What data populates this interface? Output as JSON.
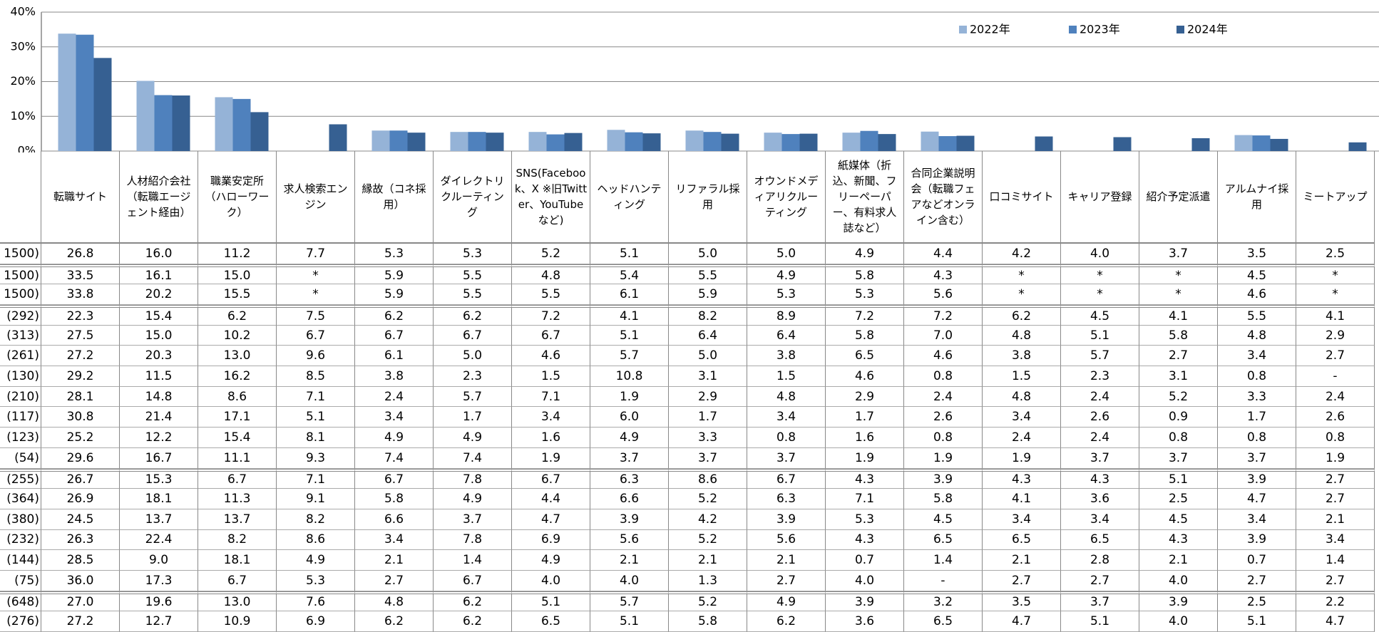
{
  "chart_data": {
    "type": "bar",
    "categories": [
      "転職サイト",
      "人材紹介会社（転職エージェント経由）",
      "職業安定所（ハローワーク）",
      "求人検索エンジン",
      "縁故（コネ採用）",
      "ダイレクトリクルーティング",
      "SNS(Facebook、X ※旧Twitter、YouTubeなど)",
      "ヘッドハンティング",
      "リファラル採用",
      "オウンドメディアリクルーティング",
      "紙媒体（折込、新聞、フリーペーパー、有料求人誌など）",
      "合同企業説明会（転職フェアなどオンライン含む）",
      "口コミサイト",
      "キャリア登録",
      "紹介予定派遣",
      "アルムナイ採用",
      "ミートアップ"
    ],
    "series": [
      {
        "name": "2022年",
        "color": "#95b3d7",
        "values": [
          33.8,
          20.2,
          15.5,
          null,
          5.9,
          5.5,
          5.5,
          6.1,
          5.9,
          5.3,
          5.3,
          5.6,
          null,
          null,
          null,
          4.6,
          null
        ]
      },
      {
        "name": "2023年",
        "color": "#4f81bd",
        "values": [
          33.5,
          16.1,
          15,
          null,
          5.9,
          5.5,
          4.8,
          5.4,
          5.5,
          4.9,
          5.8,
          4.3,
          null,
          null,
          null,
          4.5,
          null
        ]
      },
      {
        "name": "2024年",
        "color": "#366092",
        "values": [
          26.8,
          16,
          11.2,
          7.7,
          5.3,
          5.3,
          5.2,
          5.1,
          5,
          5,
          4.9,
          4.4,
          4.2,
          4,
          3.7,
          3.5,
          2.5
        ]
      }
    ],
    "ylim": [
      0,
      40
    ],
    "yticks": [
      {
        "value": 0,
        "label": "0%"
      },
      {
        "value": 10,
        "label": "10%"
      },
      {
        "value": 20,
        "label": "20%"
      },
      {
        "value": 30,
        "label": "30%"
      },
      {
        "value": 40,
        "label": "40%"
      }
    ],
    "grid": true,
    "legend": "top-right"
  },
  "table": {
    "rows": [
      {
        "label": "1500)",
        "cells": [
          "26.8",
          "16.0",
          "11.2",
          "7.7",
          "5.3",
          "5.3",
          "5.2",
          "5.1",
          "5.0",
          "5.0",
          "4.9",
          "4.4",
          "4.2",
          "4.0",
          "3.7",
          "3.5",
          "2.5"
        ]
      },
      {
        "label": "1500)",
        "cells": [
          "33.5",
          "16.1",
          "15.0",
          "*",
          "5.9",
          "5.5",
          "4.8",
          "5.4",
          "5.5",
          "4.9",
          "5.8",
          "4.3",
          "*",
          "*",
          "*",
          "4.5",
          "*"
        ]
      },
      {
        "label": "1500)",
        "cells": [
          "33.8",
          "20.2",
          "15.5",
          "*",
          "5.9",
          "5.5",
          "5.5",
          "6.1",
          "5.9",
          "5.3",
          "5.3",
          "5.6",
          "*",
          "*",
          "*",
          "4.6",
          "*"
        ]
      },
      {
        "label": "(292)",
        "cells": [
          "22.3",
          "15.4",
          "6.2",
          "7.5",
          "6.2",
          "6.2",
          "7.2",
          "4.1",
          "8.2",
          "8.9",
          "7.2",
          "7.2",
          "6.2",
          "4.5",
          "4.1",
          "5.5",
          "4.1"
        ]
      },
      {
        "label": "(313)",
        "cells": [
          "27.5",
          "15.0",
          "10.2",
          "6.7",
          "6.7",
          "6.7",
          "6.7",
          "5.1",
          "6.4",
          "6.4",
          "5.8",
          "7.0",
          "4.8",
          "5.1",
          "5.8",
          "4.8",
          "2.9"
        ]
      },
      {
        "label": "(261)",
        "cells": [
          "27.2",
          "20.3",
          "13.0",
          "9.6",
          "6.1",
          "5.0",
          "4.6",
          "5.7",
          "5.0",
          "3.8",
          "6.5",
          "4.6",
          "3.8",
          "5.7",
          "2.7",
          "3.4",
          "2.7"
        ]
      },
      {
        "label": "(130)",
        "cells": [
          "29.2",
          "11.5",
          "16.2",
          "8.5",
          "3.8",
          "2.3",
          "1.5",
          "10.8",
          "3.1",
          "1.5",
          "4.6",
          "0.8",
          "1.5",
          "2.3",
          "3.1",
          "0.8",
          "-"
        ]
      },
      {
        "label": "(210)",
        "cells": [
          "28.1",
          "14.8",
          "8.6",
          "7.1",
          "2.4",
          "5.7",
          "7.1",
          "1.9",
          "2.9",
          "4.8",
          "2.9",
          "2.4",
          "4.8",
          "2.4",
          "5.2",
          "3.3",
          "2.4"
        ]
      },
      {
        "label": "(117)",
        "cells": [
          "30.8",
          "21.4",
          "17.1",
          "5.1",
          "3.4",
          "1.7",
          "3.4",
          "6.0",
          "1.7",
          "3.4",
          "1.7",
          "2.6",
          "3.4",
          "2.6",
          "0.9",
          "1.7",
          "2.6"
        ]
      },
      {
        "label": "(123)",
        "cells": [
          "25.2",
          "12.2",
          "15.4",
          "8.1",
          "4.9",
          "4.9",
          "1.6",
          "4.9",
          "3.3",
          "0.8",
          "1.6",
          "0.8",
          "2.4",
          "2.4",
          "0.8",
          "0.8",
          "0.8"
        ]
      },
      {
        "label": "(54)",
        "cells": [
          "29.6",
          "16.7",
          "11.1",
          "9.3",
          "7.4",
          "7.4",
          "1.9",
          "3.7",
          "3.7",
          "3.7",
          "1.9",
          "1.9",
          "1.9",
          "3.7",
          "3.7",
          "3.7",
          "1.9"
        ]
      },
      {
        "label": "(255)",
        "cells": [
          "26.7",
          "15.3",
          "6.7",
          "7.1",
          "6.7",
          "7.8",
          "6.7",
          "6.3",
          "8.6",
          "6.7",
          "4.3",
          "3.9",
          "4.3",
          "4.3",
          "5.1",
          "3.9",
          "2.7"
        ]
      },
      {
        "label": "(364)",
        "cells": [
          "26.9",
          "18.1",
          "11.3",
          "9.1",
          "5.8",
          "4.9",
          "4.4",
          "6.6",
          "5.2",
          "6.3",
          "7.1",
          "5.8",
          "4.1",
          "3.6",
          "2.5",
          "4.7",
          "2.7"
        ]
      },
      {
        "label": "(380)",
        "cells": [
          "24.5",
          "13.7",
          "13.7",
          "8.2",
          "6.6",
          "3.7",
          "4.7",
          "3.9",
          "4.2",
          "3.9",
          "5.3",
          "4.5",
          "3.4",
          "3.4",
          "4.5",
          "3.4",
          "2.1"
        ]
      },
      {
        "label": "(232)",
        "cells": [
          "26.3",
          "22.4",
          "8.2",
          "8.6",
          "3.4",
          "7.8",
          "6.9",
          "5.6",
          "5.2",
          "5.6",
          "4.3",
          "6.5",
          "6.5",
          "6.5",
          "4.3",
          "3.9",
          "3.4"
        ]
      },
      {
        "label": "(144)",
        "cells": [
          "28.5",
          "9.0",
          "18.1",
          "4.9",
          "2.1",
          "1.4",
          "4.9",
          "2.1",
          "2.1",
          "2.1",
          "0.7",
          "1.4",
          "2.1",
          "2.8",
          "2.1",
          "0.7",
          "1.4"
        ]
      },
      {
        "label": "(75)",
        "cells": [
          "36.0",
          "17.3",
          "6.7",
          "5.3",
          "2.7",
          "6.7",
          "4.0",
          "4.0",
          "1.3",
          "2.7",
          "4.0",
          "-",
          "2.7",
          "2.7",
          "4.0",
          "2.7",
          "2.7"
        ]
      },
      {
        "label": "(648)",
        "cells": [
          "27.0",
          "19.6",
          "13.0",
          "7.6",
          "4.8",
          "6.2",
          "5.1",
          "5.7",
          "5.2",
          "4.9",
          "3.9",
          "3.2",
          "3.5",
          "3.7",
          "3.9",
          "2.5",
          "2.2"
        ]
      },
      {
        "label": "(276)",
        "cells": [
          "27.2",
          "12.7",
          "10.9",
          "6.9",
          "6.2",
          "6.2",
          "6.5",
          "5.1",
          "5.8",
          "6.2",
          "3.6",
          "6.5",
          "4.7",
          "5.1",
          "4.0",
          "5.1",
          "4.7"
        ]
      }
    ]
  }
}
